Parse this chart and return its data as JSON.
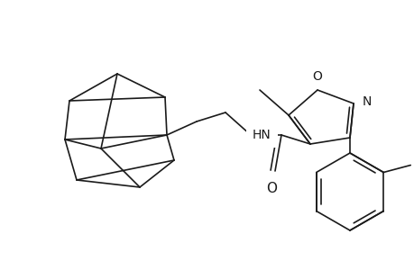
{
  "background_color": "#ffffff",
  "line_color": "#1a1a1a",
  "line_width": 1.2,
  "figsize": [
    4.6,
    3.0
  ],
  "dpi": 100,
  "xlim": [
    0,
    460
  ],
  "ylim": [
    0,
    300
  ]
}
